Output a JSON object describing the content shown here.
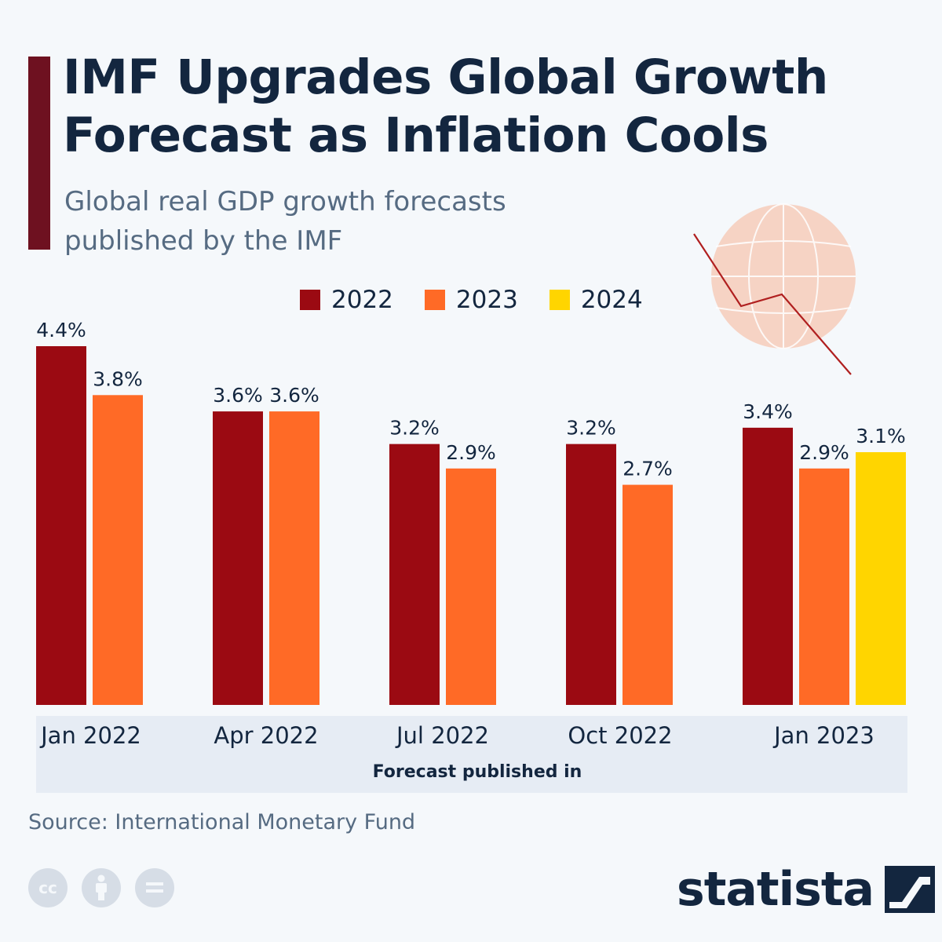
{
  "header": {
    "title": "IMF Upgrades Global Growth Forecast as Inflation Cools",
    "subtitle": "Global real GDP growth forecasts published by the IMF"
  },
  "chart_data": {
    "type": "bar",
    "title": "IMF Upgrades Global Growth Forecast as Inflation Cools",
    "subtitle": "Global real GDP growth forecasts published by the IMF",
    "xlabel": "Forecast published in",
    "ylabel": "",
    "categories": [
      "Jan 2022",
      "Apr 2022",
      "Jul 2022",
      "Oct 2022",
      "Jan 2023"
    ],
    "series": [
      {
        "name": "2022",
        "color": "#9b0a12",
        "values": [
          4.4,
          3.6,
          3.2,
          3.2,
          3.4
        ],
        "labels": [
          "4.4%",
          "3.6%",
          "3.2%",
          "3.2%",
          "3.4%"
        ]
      },
      {
        "name": "2023",
        "color": "#ff6a26",
        "values": [
          3.8,
          3.6,
          2.9,
          2.7,
          2.9
        ],
        "labels": [
          "3.8%",
          "3.6%",
          "2.9%",
          "2.7%",
          "2.9%"
        ]
      },
      {
        "name": "2024",
        "color": "#ffd500",
        "values": [
          null,
          null,
          null,
          null,
          3.1
        ],
        "labels": [
          "",
          "",
          "",
          "",
          "3.1%"
        ]
      }
    ],
    "ylim": [
      0,
      4.4
    ],
    "grid": false,
    "legend": "top"
  },
  "footer": {
    "source": "Source: International Monetary Fund",
    "brand": "statista"
  },
  "colors": {
    "accent_bar": "#6e1120",
    "globe": "#f6d3c4",
    "trend_line": "#b01f1f"
  },
  "icons": [
    "globe-icon",
    "trend-line-icon",
    "cc-license-icon",
    "attribution-icon",
    "no-derivatives-icon",
    "statista-logo-icon"
  ]
}
